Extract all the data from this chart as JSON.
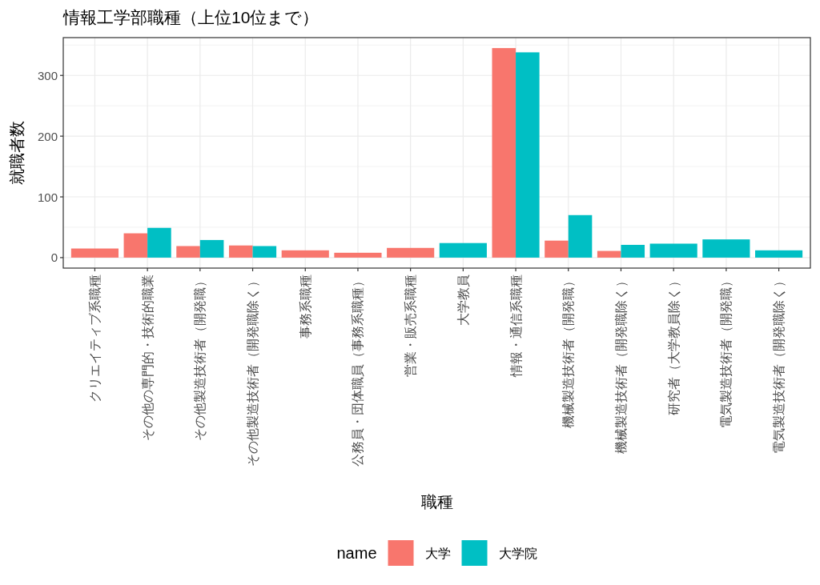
{
  "chart_data": {
    "type": "bar",
    "title": "情報工学部職種（上位10位まで）",
    "xlabel": "職種",
    "ylabel": "就職者数",
    "legend_title": "name",
    "categories": [
      "クリエイティブ系職種",
      "その他の専門的・技術的職業",
      "その他製造技術者（開発職）",
      "その他製造技術者（開発職除く）",
      "事務系職種",
      "公務員・団体職員（事務系職種）",
      "営業・販売系職種",
      "大学教員",
      "情報・通信系職種",
      "機械製造技術者（開発職）",
      "機械製造技術者（開発職除く）",
      "研究者（大学教員除く）",
      "電気製造技術者（開発職）",
      "電気製造技術者（開発職除く）"
    ],
    "series": [
      {
        "name": "大学",
        "color": "#f8766d",
        "values": [
          15,
          40,
          19,
          20,
          12,
          8,
          16,
          null,
          345,
          28,
          11,
          null,
          null,
          null
        ]
      },
      {
        "name": "大学院",
        "color": "#00bfc4",
        "values": [
          null,
          49,
          29,
          19,
          null,
          null,
          null,
          24,
          338,
          70,
          21,
          23,
          30,
          12
        ]
      }
    ],
    "ylim": [
      -17.25,
      362.25
    ],
    "yticks": [
      0,
      100,
      200,
      300
    ],
    "grid": true,
    "legend": "bottom"
  }
}
